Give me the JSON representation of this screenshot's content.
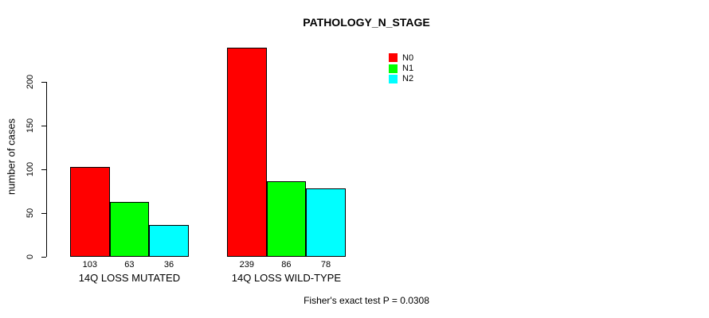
{
  "chart_data": {
    "type": "bar",
    "title": "PATHOLOGY_N_STAGE",
    "xlabel": "",
    "ylabel": "number of cases",
    "categories": [
      "14Q LOSS MUTATED",
      "14Q LOSS WILD-TYPE"
    ],
    "series": [
      {
        "name": "N0",
        "color": "#ff0000",
        "values": [
          103,
          239
        ]
      },
      {
        "name": "N1",
        "color": "#00ff00",
        "values": [
          63,
          86
        ]
      },
      {
        "name": "N2",
        "color": "#00ffff",
        "values": [
          36,
          78
        ]
      }
    ],
    "bar_value_labels": [
      [
        103,
        63,
        36
      ],
      [
        239,
        86,
        78
      ]
    ],
    "yticks": [
      0,
      50,
      100,
      150,
      200
    ],
    "ylim": [
      0,
      200
    ],
    "grid": false,
    "legend_position": "top-right",
    "legend_entries": [
      "N0",
      "N1",
      "N2"
    ],
    "footnote": "Fisher's exact test P = 0.0308"
  }
}
